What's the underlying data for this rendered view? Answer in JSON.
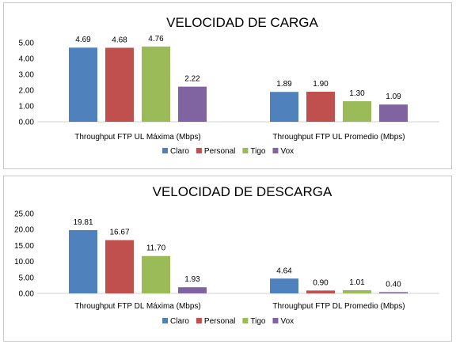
{
  "colors": {
    "Claro": "#4f81bd",
    "Personal": "#c0504d",
    "Tigo": "#9bbb59",
    "Vox": "#8064a2"
  },
  "chart_data": [
    {
      "type": "bar",
      "title": "VELOCIDAD DE CARGA",
      "categories": [
        "Throughput FTP UL Máxima (Mbps)",
        "Throughput FTP UL Promedio (Mbps)"
      ],
      "series": [
        {
          "name": "Claro",
          "values": [
            4.69,
            1.89
          ]
        },
        {
          "name": "Personal",
          "values": [
            4.68,
            1.9
          ]
        },
        {
          "name": "Tigo",
          "values": [
            4.76,
            1.3
          ]
        },
        {
          "name": "Vox",
          "values": [
            2.22,
            1.09
          ]
        }
      ],
      "ylim": [
        0,
        5
      ],
      "yticks": [
        "0.00",
        "1.00",
        "2.00",
        "3.00",
        "4.00",
        "5.00"
      ],
      "ytick_values": [
        0,
        1,
        2,
        3,
        4,
        5
      ],
      "grid": false,
      "legend": "bottom"
    },
    {
      "type": "bar",
      "title": "VELOCIDAD DE DESCARGA",
      "categories": [
        "Throughput FTP DL Máxima (Mbps)",
        "Throughput FTP DL Promedio (Mbps)"
      ],
      "series": [
        {
          "name": "Claro",
          "values": [
            19.81,
            4.64
          ]
        },
        {
          "name": "Personal",
          "values": [
            16.67,
            0.9
          ]
        },
        {
          "name": "Tigo",
          "values": [
            11.7,
            1.01
          ]
        },
        {
          "name": "Vox",
          "values": [
            1.93,
            0.4
          ]
        }
      ],
      "ylim": [
        0,
        25
      ],
      "yticks": [
        "0.00",
        "5.00",
        "10.00",
        "15.00",
        "20.00",
        "25.00"
      ],
      "ytick_values": [
        0,
        5,
        10,
        15,
        20,
        25
      ],
      "grid": false,
      "legend": "bottom"
    }
  ]
}
